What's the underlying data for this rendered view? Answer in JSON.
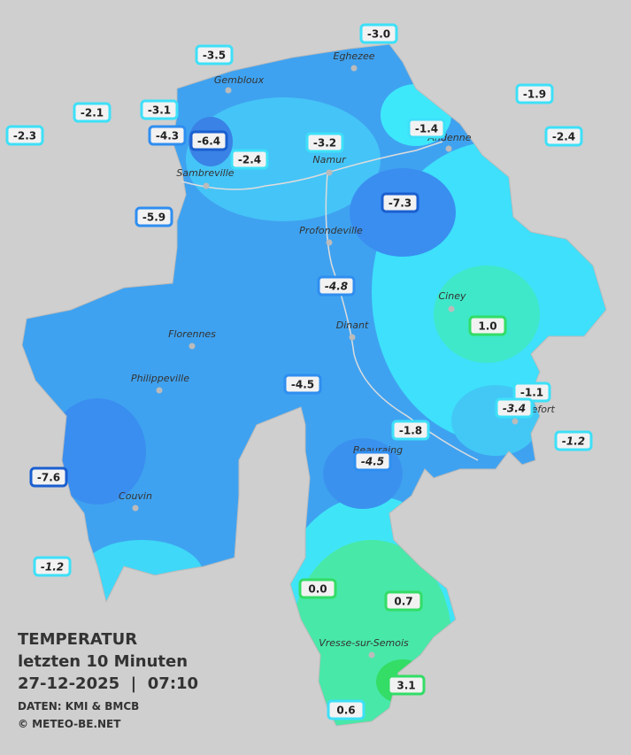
{
  "legend": {
    "title": "TEMPERATUR",
    "subtitle": "letzten 10 Minuten",
    "datetime": "27-12-2025  |  07:10",
    "source": "DATEN: KMI & BMCB",
    "copyright": "© METEO-BE.NET"
  },
  "towns": [
    "Eghezee",
    "Gembloux",
    "Andenne",
    "Namur",
    "Sambreville",
    "Profondeville",
    "Ciney",
    "Dinant",
    "Florennes",
    "Philippeville",
    "Rochefort",
    "Beauraing",
    "Couvin",
    "Vresse-sur-Semois"
  ],
  "stations": [
    "-3.0",
    "-3.5",
    "-2.1",
    "-3.1",
    "-1.9",
    "-2.3",
    "-4.3",
    "-6.4",
    "-1.4",
    "-2.4",
    "-3.2",
    "-2.4",
    "-5.9",
    "-7.3",
    "-4.8",
    "1.0",
    "-4.5",
    "-1.1",
    "-3.4",
    "-1.8",
    "-1.2",
    "-4.5",
    "-7.6",
    "-1.2",
    "0.0",
    "0.7",
    "3.1",
    "0.6"
  ]
}
